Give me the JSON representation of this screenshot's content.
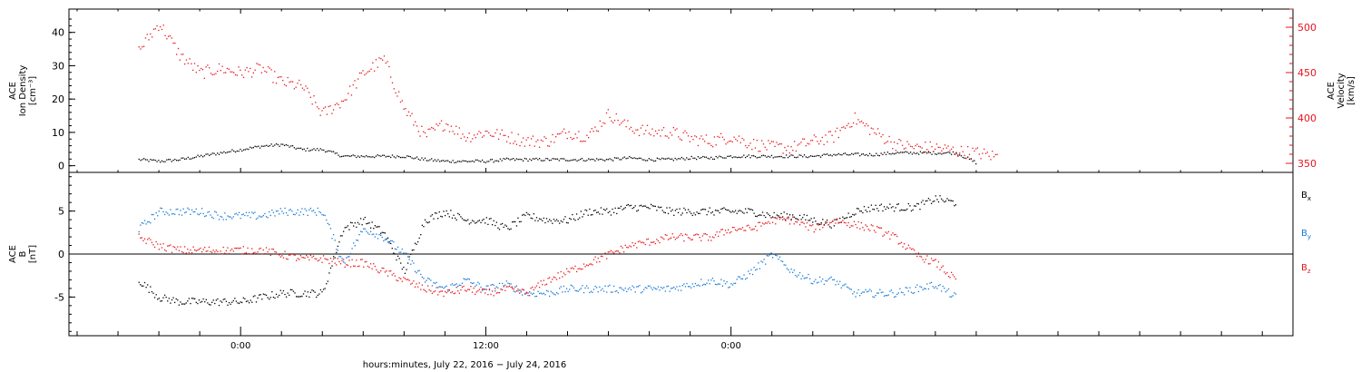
{
  "chart_data": [
    {
      "type": "scatter",
      "panel": "ion-density-velocity",
      "ylabel_left": [
        "ACE",
        "Ion Density",
        "[cm⁻³]"
      ],
      "ylabel_right": [
        "ACE",
        "Velocity",
        "[km/s]"
      ],
      "ylim_left": [
        -2,
        47
      ],
      "ylim_right": [
        340,
        520
      ],
      "left_ticks": [
        "0",
        "10",
        "20",
        "30",
        "40"
      ],
      "right_ticks": [
        "350",
        "400",
        "450",
        "500"
      ],
      "x_hours": [
        -5,
        -4,
        -3,
        -2,
        -1,
        0,
        1,
        2,
        3,
        4,
        5,
        6,
        7,
        8,
        9,
        10,
        11,
        12,
        13,
        14,
        15,
        16,
        17,
        18,
        19,
        20,
        21,
        22,
        23,
        24,
        25,
        26,
        27,
        28,
        29,
        30,
        31,
        32,
        33,
        34,
        35,
        36,
        37,
        38,
        39,
        40,
        41,
        42
      ],
      "series": [
        {
          "color": "#000000",
          "axis": "left",
          "values": [
            2,
            1.5,
            2,
            3,
            4,
            5,
            6,
            6.5,
            5,
            5,
            3,
            3,
            3,
            3,
            2,
            1.5,
            1.5,
            1.5,
            2,
            2,
            2,
            2,
            2,
            2,
            2.5,
            2,
            2,
            2.5,
            2.5,
            3,
            3,
            3,
            3,
            3,
            3.5,
            3.5,
            3.5,
            4,
            4,
            4,
            4,
            1,
            null,
            null,
            null,
            null,
            null,
            null
          ]
        },
        {
          "color": "#e8141a",
          "axis": "right",
          "values": [
            475,
            505,
            470,
            450,
            455,
            450,
            455,
            440,
            435,
            405,
            420,
            450,
            465,
            410,
            380,
            395,
            380,
            385,
            380,
            375,
            375,
            385,
            380,
            405,
            390,
            385,
            385,
            378,
            375,
            380,
            372,
            368,
            368,
            375,
            380,
            400,
            385,
            372,
            368,
            368,
            364,
            362,
            358,
            null,
            null,
            null,
            null,
            null
          ]
        }
      ]
    },
    {
      "type": "scatter",
      "panel": "magnetic-field",
      "ylabel": [
        "ACE",
        "B",
        "[nT]"
      ],
      "ylim": [
        -9.5,
        9.5
      ],
      "left_ticks": [
        "-5",
        "0",
        "5"
      ],
      "legend_position": "right",
      "series": [
        {
          "name": "B",
          "sub": "x",
          "color": "#000000",
          "values": [
            -3,
            -5,
            -5.5,
            -5.5,
            -5.5,
            -5.5,
            -5,
            -4.5,
            -4.5,
            -4.5,
            3,
            4,
            2.5,
            -2,
            4,
            5,
            4,
            4,
            3,
            4.5,
            4,
            4,
            5,
            5,
            5.5,
            5.5,
            5,
            5,
            5,
            5,
            5,
            4.5,
            4.5,
            4,
            3.5,
            5,
            5.5,
            5.5,
            5.5,
            6.5,
            6,
            null,
            null,
            null,
            null,
            null,
            null,
            null
          ]
        },
        {
          "name": "B",
          "sub": "y",
          "color": "#1778d6",
          "values": [
            3,
            5,
            5,
            5,
            4.5,
            4.5,
            4.5,
            5,
            5,
            5,
            -1,
            3,
            2,
            0,
            -3,
            -4,
            -3,
            -4,
            -3.5,
            -4.5,
            -4.5,
            -4,
            -4,
            -4,
            -4,
            -4,
            -4,
            -3.5,
            -3,
            -3.5,
            -2,
            0,
            -2,
            -3,
            -3,
            -4.5,
            -4.5,
            -4.5,
            -4,
            -3.5,
            -5,
            null,
            null,
            null,
            null,
            null,
            null,
            null
          ]
        },
        {
          "name": "B",
          "sub": "z",
          "color": "#e8141a",
          "values": [
            2,
            1,
            0.5,
            0.5,
            0.5,
            0.5,
            0.5,
            0,
            -0.5,
            -0.5,
            -1,
            -1,
            -2,
            -3,
            -4,
            -4.5,
            -4,
            -4.5,
            -4,
            -4.5,
            -3,
            -2,
            -1,
            0,
            1,
            1.5,
            2,
            2,
            2,
            3,
            3,
            4,
            4,
            3,
            4,
            3.5,
            3,
            2,
            0,
            -1,
            -3,
            null,
            null,
            null,
            null,
            null,
            null,
            null
          ]
        }
      ]
    }
  ],
  "x_axis": {
    "range_hours": [
      -8.4,
      51.5
    ],
    "major_ticks": [
      {
        "h": 0,
        "label": "0:00"
      },
      {
        "h": 12,
        "label": "12:00"
      },
      {
        "h": 24,
        "label": "0:00"
      }
    ],
    "minor_every_hours": 2,
    "xlabel": "hours:minutes, July 22, 2016 − July 24, 2016"
  },
  "legend": {
    "x_label": "B",
    "x_sub": "x",
    "y_label": "B",
    "y_sub": "y",
    "z_label": "B",
    "z_sub": "z"
  }
}
